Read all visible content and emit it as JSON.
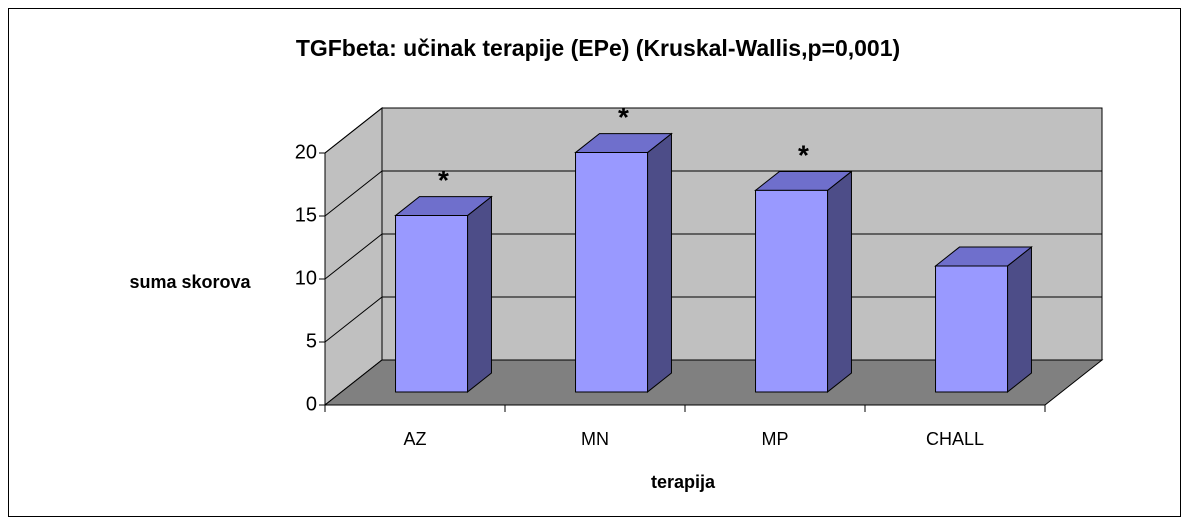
{
  "chart_data": {
    "type": "bar3d",
    "title": "TGFbeta: učinak terapije (EPe) (Kruskal-Wallis,p=0,001)",
    "xlabel": "terapija",
    "ylabel": "suma skorova",
    "categories": [
      "AZ",
      "MN",
      "MP",
      "CHALL"
    ],
    "values": [
      14,
      19,
      16,
      10
    ],
    "color": "#9999ff",
    "ylim": [
      0,
      20
    ],
    "yticks": [
      0,
      5,
      10,
      15,
      20
    ],
    "grid": true,
    "annotations": [
      {
        "text": "*",
        "category": "AZ"
      },
      {
        "text": "*",
        "category": "MN"
      },
      {
        "text": "*",
        "category": "MP"
      }
    ]
  }
}
